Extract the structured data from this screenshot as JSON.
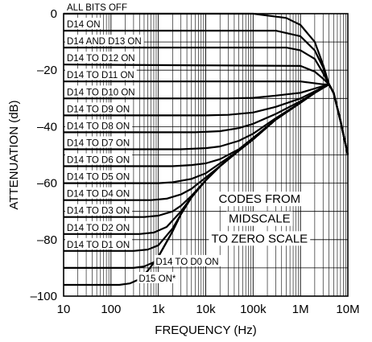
{
  "chart_data": {
    "type": "line",
    "title": "",
    "xlabel": "FREQUENCY (Hz)",
    "ylabel": "ATTENUATION (dB)",
    "xscale": "log",
    "xlim": [
      10,
      10000000
    ],
    "ylim": [
      -100,
      0
    ],
    "grid": true,
    "legend": "none",
    "x_ticks": [
      {
        "value": 10,
        "label": "10"
      },
      {
        "value": 100,
        "label": "100"
      },
      {
        "value": 1000,
        "label": "1k"
      },
      {
        "value": 10000,
        "label": "10k"
      },
      {
        "value": 100000,
        "label": "100k"
      },
      {
        "value": 1000000,
        "label": "1M"
      },
      {
        "value": 10000000,
        "label": "10M"
      }
    ],
    "y_ticks": [
      {
        "value": 0,
        "label": "0"
      },
      {
        "value": -20,
        "label": "–20"
      },
      {
        "value": -40,
        "label": "–40"
      },
      {
        "value": -60,
        "label": "–60"
      },
      {
        "value": -80,
        "label": "–80"
      },
      {
        "value": -100,
        "label": "–100"
      }
    ],
    "series": [
      {
        "name": "ALL BITS OFF",
        "label_at": [
          10,
          0
        ],
        "points": [
          [
            10,
            0
          ],
          [
            100000,
            0
          ],
          [
            500000,
            -1.5
          ],
          [
            1000000,
            -4
          ],
          [
            2000000,
            -10
          ],
          [
            3000000,
            -18
          ],
          [
            4000000,
            -25
          ],
          [
            5000000,
            -28
          ],
          [
            7000000,
            -38
          ],
          [
            10000000,
            -50
          ]
        ]
      },
      {
        "name": "D14 ON",
        "label_at": [
          10,
          -6
        ],
        "points": [
          [
            10,
            -6
          ],
          [
            300000,
            -6
          ],
          [
            1000000,
            -8
          ],
          [
            2000000,
            -13
          ],
          [
            3000000,
            -19
          ],
          [
            4000000,
            -25
          ],
          [
            5000000,
            -28
          ],
          [
            7000000,
            -38
          ],
          [
            10000000,
            -50
          ]
        ]
      },
      {
        "name": "D14 AND D13 ON",
        "label_at": [
          10,
          -12
        ],
        "points": [
          [
            10,
            -12
          ],
          [
            500000,
            -12
          ],
          [
            1000000,
            -13
          ],
          [
            2000000,
            -16
          ],
          [
            3000000,
            -21
          ],
          [
            4000000,
            -25
          ],
          [
            5000000,
            -28
          ],
          [
            7000000,
            -38
          ],
          [
            10000000,
            -50
          ]
        ]
      },
      {
        "name": "D14 TO D12 ON",
        "label_at": [
          10,
          -18
        ],
        "points": [
          [
            10,
            -18
          ],
          [
            1000000,
            -18.5
          ],
          [
            2000000,
            -20.5
          ],
          [
            3000000,
            -23
          ],
          [
            4000000,
            -25
          ],
          [
            5000000,
            -28
          ],
          [
            7000000,
            -38
          ],
          [
            10000000,
            -50
          ]
        ]
      },
      {
        "name": "D14 TO D11 ON",
        "label_at": [
          10,
          -24
        ],
        "points": [
          [
            10,
            -24
          ],
          [
            300000,
            -24
          ],
          [
            1000000,
            -24
          ],
          [
            3000000,
            -25
          ],
          [
            4000000,
            -25
          ],
          [
            5000000,
            -28
          ],
          [
            7000000,
            -38
          ],
          [
            10000000,
            -50
          ]
        ]
      },
      {
        "name": "D14 TO D10 ON",
        "label_at": [
          10,
          -30
        ],
        "points": [
          [
            10,
            -30
          ],
          [
            30000,
            -30
          ],
          [
            100000,
            -29.8
          ],
          [
            300000,
            -29
          ],
          [
            1000000,
            -28
          ],
          [
            2000000,
            -26.5
          ],
          [
            4000000,
            -25
          ],
          [
            5000000,
            -28
          ],
          [
            7000000,
            -38
          ],
          [
            10000000,
            -50
          ]
        ]
      },
      {
        "name": "D14 TO D9 ON",
        "label_at": [
          10,
          -36
        ],
        "points": [
          [
            10,
            -36
          ],
          [
            10000,
            -36
          ],
          [
            30000,
            -35.8
          ],
          [
            100000,
            -35
          ],
          [
            300000,
            -33
          ],
          [
            1000000,
            -30
          ],
          [
            2000000,
            -27.5
          ],
          [
            4000000,
            -25
          ],
          [
            5000000,
            -28
          ],
          [
            7000000,
            -38
          ],
          [
            10000000,
            -50
          ]
        ]
      },
      {
        "name": "D14 TO D8 ON",
        "label_at": [
          10,
          -42
        ],
        "points": [
          [
            10,
            -42
          ],
          [
            6000,
            -42
          ],
          [
            20000,
            -41.6
          ],
          [
            50000,
            -40.5
          ],
          [
            100000,
            -39
          ],
          [
            300000,
            -35.5
          ],
          [
            1000000,
            -31
          ],
          [
            2000000,
            -28
          ],
          [
            4000000,
            -25
          ],
          [
            5000000,
            -28
          ],
          [
            7000000,
            -38
          ],
          [
            10000000,
            -50
          ]
        ]
      },
      {
        "name": "D14 TO D7 ON",
        "label_at": [
          10,
          -48
        ],
        "points": [
          [
            10,
            -48
          ],
          [
            3000,
            -48
          ],
          [
            10000,
            -47.6
          ],
          [
            20000,
            -47
          ],
          [
            50000,
            -45
          ],
          [
            100000,
            -42.5
          ],
          [
            300000,
            -37
          ],
          [
            1000000,
            -31.5
          ],
          [
            2000000,
            -28
          ],
          [
            4000000,
            -25
          ],
          [
            5000000,
            -28
          ],
          [
            7000000,
            -38
          ],
          [
            10000000,
            -50
          ]
        ]
      },
      {
        "name": "D14 TO D6 ON",
        "label_at": [
          10,
          -54
        ],
        "points": [
          [
            10,
            -54
          ],
          [
            2000,
            -54
          ],
          [
            5000,
            -53.6
          ],
          [
            10000,
            -53
          ],
          [
            20000,
            -51.5
          ],
          [
            50000,
            -48
          ],
          [
            100000,
            -44
          ],
          [
            300000,
            -37.5
          ],
          [
            1000000,
            -31.5
          ],
          [
            2000000,
            -28
          ],
          [
            4000000,
            -25
          ],
          [
            5000000,
            -28
          ],
          [
            7000000,
            -38
          ],
          [
            10000000,
            -50
          ]
        ]
      },
      {
        "name": "D14 TO D5 ON",
        "label_at": [
          10,
          -60
        ],
        "points": [
          [
            10,
            -60
          ],
          [
            1000,
            -60
          ],
          [
            2000,
            -59.7
          ],
          [
            5000,
            -58.5
          ],
          [
            10000,
            -56.5
          ],
          [
            20000,
            -53
          ],
          [
            50000,
            -48.5
          ],
          [
            100000,
            -44.5
          ],
          [
            300000,
            -37.5
          ],
          [
            1000000,
            -31.5
          ],
          [
            2000000,
            -28
          ],
          [
            4000000,
            -25
          ],
          [
            5000000,
            -28
          ],
          [
            7000000,
            -38
          ],
          [
            10000000,
            -50
          ]
        ]
      },
      {
        "name": "D14 TO D4  ON",
        "label_at": [
          10,
          -66
        ],
        "points": [
          [
            10,
            -66
          ],
          [
            700,
            -66
          ],
          [
            1500,
            -65.5
          ],
          [
            3000,
            -64
          ],
          [
            5000,
            -62
          ],
          [
            10000,
            -58
          ],
          [
            20000,
            -54
          ],
          [
            50000,
            -48.5
          ],
          [
            100000,
            -44.5
          ],
          [
            300000,
            -37.5
          ],
          [
            1000000,
            -31.5
          ],
          [
            2000000,
            -28
          ],
          [
            4000000,
            -25
          ],
          [
            5000000,
            -28
          ],
          [
            7000000,
            -38
          ],
          [
            10000000,
            -50
          ]
        ]
      },
      {
        "name": "D14 TO D3  ON",
        "label_at": [
          10,
          -72
        ],
        "points": [
          [
            10,
            -72
          ],
          [
            500,
            -72
          ],
          [
            1000,
            -71.5
          ],
          [
            2000,
            -70
          ],
          [
            3000,
            -68
          ],
          [
            5000,
            -64.5
          ],
          [
            10000,
            -59
          ],
          [
            20000,
            -54
          ],
          [
            50000,
            -48.5
          ],
          [
            100000,
            -44.5
          ],
          [
            300000,
            -37.5
          ],
          [
            1000000,
            -31.5
          ],
          [
            2000000,
            -28
          ],
          [
            4000000,
            -25
          ],
          [
            5000000,
            -28
          ],
          [
            7000000,
            -38
          ],
          [
            10000000,
            -50
          ]
        ]
      },
      {
        "name": "D14 TO D2  ON",
        "label_at": [
          10,
          -78
        ],
        "points": [
          [
            10,
            -78
          ],
          [
            400,
            -78
          ],
          [
            800,
            -77.5
          ],
          [
            1500,
            -75.5
          ],
          [
            3000,
            -70
          ],
          [
            5000,
            -65
          ],
          [
            10000,
            -59
          ],
          [
            20000,
            -54
          ],
          [
            50000,
            -48.5
          ],
          [
            100000,
            -44.5
          ],
          [
            300000,
            -37.5
          ],
          [
            1000000,
            -31.5
          ],
          [
            2000000,
            -28
          ],
          [
            4000000,
            -25
          ],
          [
            5000000,
            -28
          ],
          [
            7000000,
            -38
          ],
          [
            10000000,
            -50
          ]
        ]
      },
      {
        "name": "D14 TO D1 ON",
        "label_at": [
          10,
          -84
        ],
        "points": [
          [
            10,
            -84
          ],
          [
            300,
            -84
          ],
          [
            600,
            -83.5
          ],
          [
            1000,
            -82
          ],
          [
            2000,
            -76
          ],
          [
            3000,
            -71
          ],
          [
            5000,
            -65
          ],
          [
            10000,
            -59
          ],
          [
            20000,
            -54
          ],
          [
            50000,
            -48.5
          ],
          [
            100000,
            -44.5
          ],
          [
            300000,
            -37.5
          ],
          [
            1000000,
            -31.5
          ],
          [
            2000000,
            -28
          ],
          [
            4000000,
            -25
          ],
          [
            5000000,
            -28
          ],
          [
            7000000,
            -38
          ],
          [
            10000000,
            -50
          ]
        ]
      },
      {
        "name": "D14 TO D0 ON",
        "label_at": [
          750,
          -90
        ],
        "points": [
          [
            10,
            -90
          ],
          [
            300,
            -90
          ],
          [
            500,
            -89.5
          ],
          [
            800,
            -88
          ],
          [
            1000,
            -86
          ],
          [
            2000,
            -77
          ],
          [
            3000,
            -71
          ],
          [
            5000,
            -65
          ],
          [
            10000,
            -59
          ],
          [
            20000,
            -54
          ],
          [
            50000,
            -48.5
          ],
          [
            100000,
            -44.5
          ],
          [
            300000,
            -37.5
          ],
          [
            1000000,
            -31.5
          ],
          [
            2000000,
            -28
          ],
          [
            4000000,
            -25
          ],
          [
            5000000,
            -28
          ],
          [
            7000000,
            -38
          ],
          [
            10000000,
            -50
          ]
        ]
      },
      {
        "name": "D15 ON*",
        "label_at": [
          330,
          -96
        ],
        "points": [
          [
            10,
            -96
          ],
          [
            150,
            -96
          ],
          [
            250,
            -95.5
          ],
          [
            400,
            -94
          ],
          [
            600,
            -91
          ],
          [
            1000,
            -86
          ],
          [
            2000,
            -77
          ],
          [
            3000,
            -71
          ],
          [
            5000,
            -65
          ],
          [
            10000,
            -59
          ],
          [
            20000,
            -54
          ],
          [
            50000,
            -48.5
          ],
          [
            100000,
            -44.5
          ],
          [
            300000,
            -37.5
          ],
          [
            1000000,
            -31.5
          ],
          [
            2000000,
            -28
          ],
          [
            4000000,
            -25
          ],
          [
            5000000,
            -28
          ],
          [
            7000000,
            -38
          ],
          [
            10000000,
            -50
          ]
        ]
      }
    ],
    "annotation": {
      "lines": [
        "CODES FROM",
        "MIDSCALE",
        "TO ZERO SCALE"
      ],
      "x": 100000,
      "y": [
        -67,
        -74,
        -81
      ]
    }
  }
}
